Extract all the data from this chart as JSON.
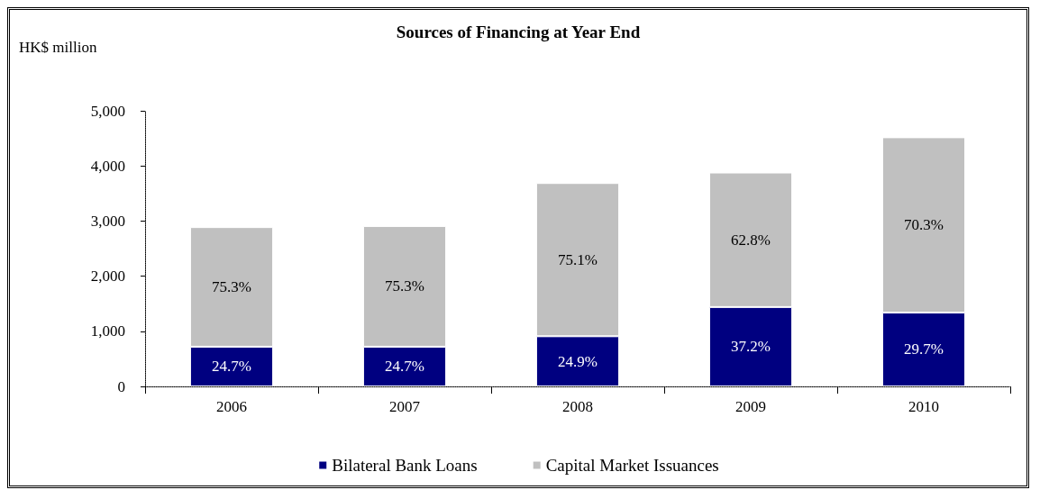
{
  "chart_data": {
    "type": "bar",
    "title": "Sources of Financing at Year End",
    "ylabel": "HK$ million",
    "categories": [
      "2006",
      "2007",
      "2008",
      "2009",
      "2010"
    ],
    "stacked": true,
    "series": [
      {
        "name": "Bilateral Bank Loans",
        "color": "#000080",
        "values": [
          720,
          720,
          910,
          1440,
          1340
        ]
      },
      {
        "name": "Capital Market Issuances",
        "color": "#c0c0c0",
        "values": [
          2170,
          2190,
          2780,
          2440,
          3180
        ]
      }
    ],
    "annotations": [
      "24.7%",
      "24.7%",
      "24.9%",
      "37.2%",
      "29.7%",
      "75.3%",
      "75.3%",
      "75.1%",
      "62.8%",
      "70.3%"
    ],
    "ylim": [
      0,
      5000
    ],
    "yticks": [
      {
        "value": 0,
        "label": "0"
      },
      {
        "value": 1000,
        "label": "1,000"
      },
      {
        "value": 2000,
        "label": "2,000"
      },
      {
        "value": 3000,
        "label": "3,000"
      },
      {
        "value": 4000,
        "label": "4,000"
      },
      {
        "value": 5000,
        "label": "5,000"
      }
    ],
    "grid": false,
    "legend": "bottom"
  }
}
